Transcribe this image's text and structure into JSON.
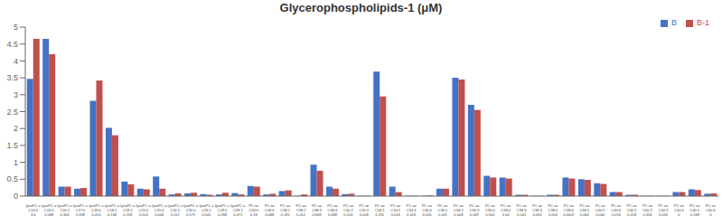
{
  "chart_data": {
    "type": "bar",
    "title": "Glycerophospholipids-1 (μM)",
    "categories": [
      "lysoPC a\nC14:0\n3.6",
      "lysoPC a\nC16:0\n0.588",
      "lysoPC a\nC16:1\n0.306",
      "lysoPC a\nC17:0\n0.338",
      "lysoPC a\nC18:0\n0.413",
      "lysoPC a\nC18:1\n0.138",
      "lysoPC a\nC18:2\n0.158",
      "lysoPC a\nC20:0\n0.503",
      "lysoPC a\nC20:4\n0.046",
      "lysoPC a\nC24:0\n0.112",
      "lysoPC a\nC26:0\n0.179",
      "lysoPC a\nC26:1\n0.041",
      "lysoPC a\nC28:0\n0.288",
      "lysoPC a\nC28:1\n0.071",
      "PC aa\nC34:0\n0.18",
      "PC aa\nC36:0\n0.088",
      "PC aa\nC38:1\n0.181",
      "PC aa\nC38:2\n0.012",
      "PC aa\nC38:3\n0.808",
      "PC aa\nC38:4\n0.088",
      "PC aa\nC40:2\n0.016",
      "PC ae\nC32:0\n0.008",
      "PC ae\nC34:1\n0.311",
      "PC ae\nC34:2\n0.016",
      "PC ae\nC34:4\n0.018",
      "PC ae\nC36:0\n0.026",
      "PC ae\nC36:1\n0.011",
      "PC ae\nC36:2\n0.008",
      "PC ae\nC36:3\n0.049",
      "PC ae\nC36:4\n0.504",
      "PC ae\nC38:0\n0.04",
      "PC ae\nC38:6\n0.041",
      "PC ae\nC38:3\n0.063",
      "PC ae\nC38:5\n0.004",
      "PC ae\nC38:4\n0.0002",
      "PC ae\nC38:5\n0.064",
      "PC ae\nC40:5\n0.040",
      "PC ae\nC40:6\n0.016",
      "PC ae\nC40:1\n0.018",
      "PC ae\nC40:2\n0.316",
      "PC ae\nC40:3\n0.026",
      "PC ae\nC40:4\n0",
      "PC ae\nC40:5\n0.188",
      "PC ae\nC40:6\n0"
    ],
    "series": [
      {
        "name": "B",
        "color": "#4472C4",
        "values": [
          3.47,
          4.65,
          0.28,
          0.22,
          2.82,
          2.02,
          0.43,
          0.22,
          0.58,
          0.05,
          0.08,
          0.06,
          0.05,
          0.09,
          0.3,
          0.05,
          0.15,
          0.01,
          0.93,
          0.28,
          0.06,
          0.01,
          3.68,
          0.28,
          0.01,
          0.01,
          0.22,
          3.5,
          2.7,
          0.6,
          0.55,
          0.04,
          0.01,
          0.04,
          0.55,
          0.5,
          0.38,
          0.12,
          0.04,
          0.01,
          0.01,
          0.12,
          0.2,
          0.07
        ]
      },
      {
        "name": "B-1",
        "color": "#C0504D",
        "values": [
          4.65,
          4.2,
          0.28,
          0.24,
          3.42,
          1.8,
          0.35,
          0.2,
          0.22,
          0.08,
          0.1,
          0.04,
          0.1,
          0.05,
          0.28,
          0.07,
          0.17,
          0.05,
          0.75,
          0.22,
          0.07,
          0.01,
          2.95,
          0.12,
          0.01,
          0.02,
          0.22,
          3.45,
          2.55,
          0.55,
          0.52,
          0.04,
          0.01,
          0.04,
          0.52,
          0.48,
          0.36,
          0.12,
          0.04,
          0.01,
          0.01,
          0.12,
          0.18,
          0.08
        ]
      }
    ],
    "ylim": [
      0,
      5
    ],
    "yticks": [
      0,
      0.5,
      1,
      1.5,
      2,
      2.5,
      3,
      3.5,
      4,
      4.5,
      5
    ],
    "legend": "upper right",
    "grid": false
  }
}
